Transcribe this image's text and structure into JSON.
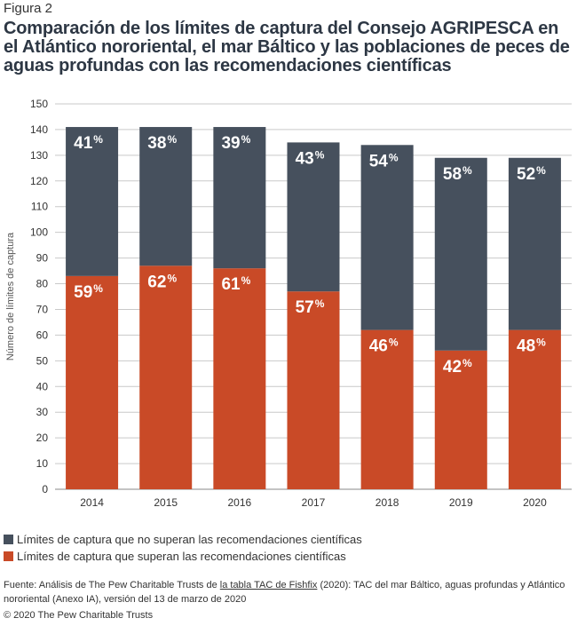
{
  "figure_label": "Figura 2",
  "chart_data": {
    "type": "bar",
    "stacked": true,
    "title": "Comparación de los límites de captura del Consejo AGRIPESCA en el Atlántico nororiental, el mar Báltico y las poblaciones de peces de aguas profundas con las recomendaciones científicas",
    "xlabel": "",
    "ylabel": "Número de límites de captura",
    "ylim": [
      0,
      150
    ],
    "yticks": [
      0,
      10,
      20,
      30,
      40,
      50,
      60,
      70,
      80,
      90,
      100,
      110,
      120,
      130,
      140,
      150
    ],
    "grid": true,
    "categories": [
      "2014",
      "2015",
      "2016",
      "2017",
      "2018",
      "2019",
      "2020"
    ],
    "series": [
      {
        "name": "Límites de captura que superan las recomendaciones científicas",
        "color": "#c94a27",
        "values": [
          83,
          87,
          86,
          77,
          62,
          54,
          62
        ],
        "labels": [
          "59",
          "62",
          "61",
          "57",
          "46",
          "42",
          "48"
        ]
      },
      {
        "name": "Límites de captura que no superan las recomendaciones científicas",
        "color": "#46505d",
        "values": [
          58,
          54,
          55,
          58,
          72,
          75,
          67
        ],
        "labels": [
          "41",
          "38",
          "39",
          "43",
          "54",
          "58",
          "52"
        ]
      }
    ],
    "label_suffix": "%",
    "legend_position": "bottom-left"
  },
  "legend": [
    {
      "label": "Límites de captura que no superan las recomendaciones científicas",
      "color": "#46505d"
    },
    {
      "label": "Límites de captura que superan las recomendaciones científicas",
      "color": "#c94a27"
    }
  ],
  "source": {
    "prefix": "Fuente: Análisis de The Pew Charitable Trusts de ",
    "link": "la tabla TAC de Fishfix",
    "suffix": " (2020): TAC del mar Báltico, aguas profundas y Atlántico nororiental (Anexo IA), versión del 13 de marzo de 2020"
  },
  "copyright": "© 2020 The Pew Charitable Trusts"
}
